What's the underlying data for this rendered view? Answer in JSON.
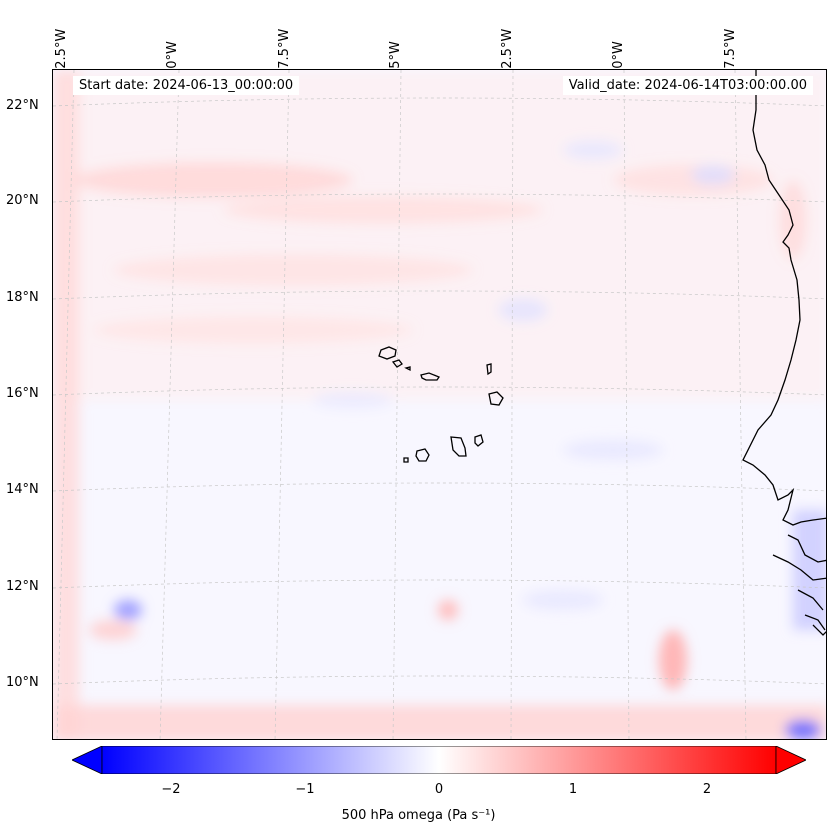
{
  "map": {
    "type": "filled-contour-map",
    "projection": "conic",
    "region": "Cape Verde and West African coast",
    "start_date_label": "Start date: 2024-06-13_00:00:00",
    "valid_date_label": "Valid_date: 2024-06-14T03:00:00.00",
    "lon_labels": [
      "32.5°W",
      "30°W",
      "27.5°W",
      "25°W",
      "22.5°W",
      "20°W",
      "17.5°W"
    ],
    "lat_labels": [
      "22°N",
      "20°N",
      "18°N",
      "16°N",
      "14°N",
      "12°N",
      "10°N"
    ],
    "gridlines": true,
    "coastlines": true,
    "colors": {
      "negative": "#0000ff",
      "zero": "#ffffff",
      "positive": "#ff0000",
      "coastline": "#000000",
      "gridline": "#c8c8c8"
    }
  },
  "colorbar": {
    "colormap": "bwr",
    "vmin": -2.5,
    "vmax": 2.5,
    "extend": "both",
    "ticks": [
      "−2",
      "−1",
      "0",
      "1",
      "2"
    ],
    "tick_values": [
      -2,
      -1,
      0,
      1,
      2
    ],
    "label": "500 hPa omega (Pa s⁻¹)"
  }
}
